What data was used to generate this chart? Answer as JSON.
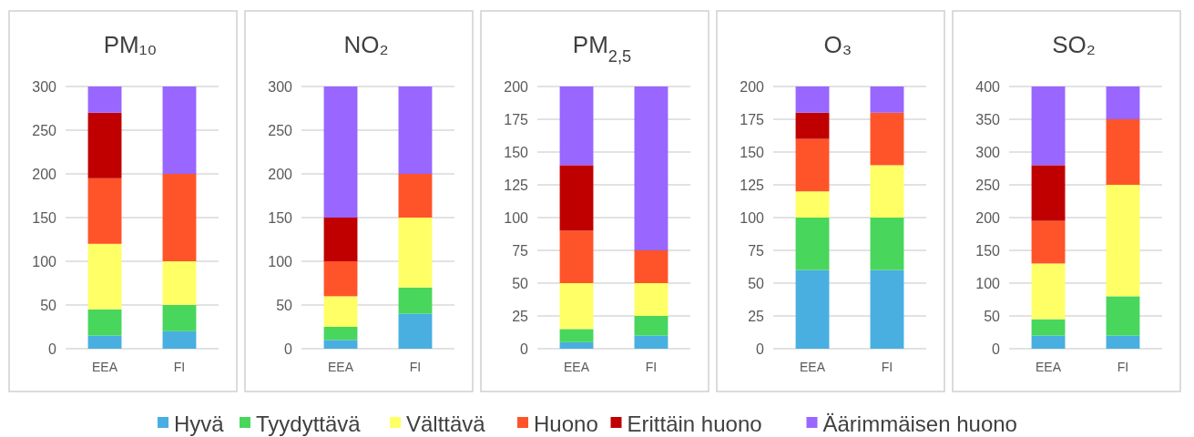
{
  "chart_data": [
    {
      "type": "bar",
      "title": "PM₁₀",
      "categories": [
        "EEA",
        "FI"
      ],
      "stacked": true,
      "ylim": [
        0,
        300
      ],
      "yticks": [
        0,
        50,
        100,
        150,
        200,
        250,
        300
      ],
      "grid": "y",
      "legend": "bottom",
      "series": [
        {
          "name": "Hyvä",
          "color": "#48afe0",
          "values": [
            15,
            20
          ]
        },
        {
          "name": "Tyydyttävä",
          "color": "#48d65d",
          "values": [
            30,
            30
          ]
        },
        {
          "name": "Välttävä",
          "color": "#ffff66",
          "values": [
            75,
            50
          ]
        },
        {
          "name": "Huono",
          "color": "#ff5429",
          "values": [
            75,
            100
          ]
        },
        {
          "name": "Erittäin huono",
          "color": "#c00000",
          "values": [
            75,
            null
          ]
        },
        {
          "name": "Äärimmäisen huono",
          "color": "#9966ff",
          "values": [
            30,
            100
          ]
        }
      ]
    },
    {
      "type": "bar",
      "title": "NO₂",
      "categories": [
        "EEA",
        "FI"
      ],
      "stacked": true,
      "ylim": [
        0,
        300
      ],
      "yticks": [
        0,
        50,
        100,
        150,
        200,
        250,
        300
      ],
      "grid": "y",
      "series": [
        {
          "color": "#48afe0",
          "values": [
            10,
            40
          ]
        },
        {
          "color": "#48d65d",
          "values": [
            15,
            30
          ]
        },
        {
          "color": "#ffff66",
          "values": [
            35,
            80
          ]
        },
        {
          "color": "#ff5429",
          "values": [
            40,
            50
          ]
        },
        {
          "color": "#c00000",
          "values": [
            50,
            null
          ]
        },
        {
          "color": "#9966ff",
          "values": [
            150,
            100
          ]
        }
      ]
    },
    {
      "type": "bar",
      "title": "PM$_{2,5}$",
      "categories": [
        "EEA",
        "FI"
      ],
      "stacked": true,
      "ylim": [
        0,
        200
      ],
      "yticks": [
        0,
        25,
        50,
        75,
        100,
        125,
        150,
        175,
        200
      ],
      "grid": "y",
      "series": [
        {
          "color": "#48afe0",
          "values": [
            5,
            10
          ]
        },
        {
          "color": "#48d65d",
          "values": [
            10,
            15
          ]
        },
        {
          "color": "#ffff66",
          "values": [
            35,
            25
          ]
        },
        {
          "color": "#ff5429",
          "values": [
            40,
            25
          ]
        },
        {
          "color": "#c00000",
          "values": [
            50,
            null
          ]
        },
        {
          "color": "#9966ff",
          "values": [
            60,
            125
          ]
        }
      ]
    },
    {
      "type": "bar",
      "title": "O₃",
      "categories": [
        "EEA",
        "FI"
      ],
      "stacked": true,
      "ylim": [
        0,
        200
      ],
      "yticks": [
        0,
        25,
        50,
        75,
        100,
        125,
        150,
        175,
        200
      ],
      "grid": "y",
      "series": [
        {
          "color": "#48afe0",
          "values": [
            60,
            60
          ]
        },
        {
          "color": "#48d65d",
          "values": [
            40,
            40
          ]
        },
        {
          "color": "#ffff66",
          "values": [
            20,
            40
          ]
        },
        {
          "color": "#ff5429",
          "values": [
            40,
            40
          ]
        },
        {
          "color": "#c00000",
          "values": [
            20,
            null
          ]
        },
        {
          "color": "#9966ff",
          "values": [
            20,
            20
          ]
        }
      ]
    },
    {
      "type": "bar",
      "title": "SO₂",
      "categories": [
        "EEA",
        "FI"
      ],
      "stacked": true,
      "ylim": [
        0,
        400
      ],
      "yticks": [
        0,
        50,
        100,
        150,
        200,
        250,
        300,
        350,
        400
      ],
      "grid": "y",
      "series": [
        {
          "color": "#48afe0",
          "values": [
            20,
            20
          ]
        },
        {
          "color": "#48d65d",
          "values": [
            25,
            60
          ]
        },
        {
          "color": "#ffff66",
          "values": [
            85,
            170
          ]
        },
        {
          "color": "#ff5429",
          "values": [
            65,
            100
          ]
        },
        {
          "color": "#c00000",
          "values": [
            85,
            null
          ]
        },
        {
          "color": "#9966ff",
          "values": [
            120,
            50
          ]
        }
      ]
    }
  ]
}
